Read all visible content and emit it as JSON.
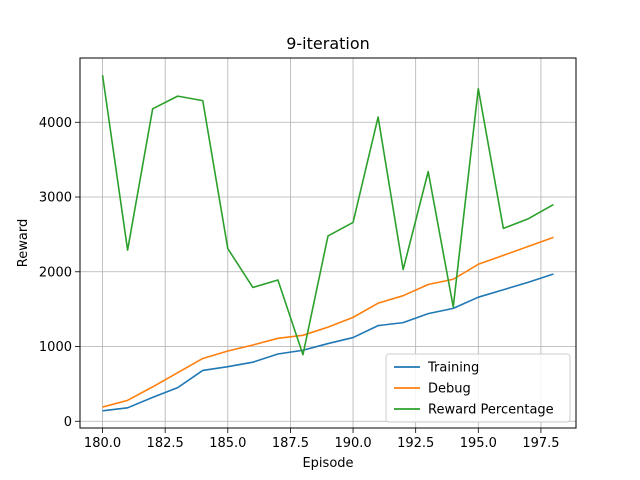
{
  "chart_data": {
    "type": "line",
    "title": "9-iteration",
    "xlabel": "Episode",
    "ylabel": "Reward",
    "xlim": [
      179.1,
      198.9
    ],
    "ylim": [
      -90,
      4860
    ],
    "xticks": [
      180.0,
      182.5,
      185.0,
      187.5,
      190.0,
      192.5,
      195.0,
      197.5
    ],
    "xtick_labels": [
      "180.0",
      "182.5",
      "185.0",
      "187.5",
      "190.0",
      "192.5",
      "195.0",
      "197.5"
    ],
    "yticks": [
      0,
      1000,
      2000,
      3000,
      4000
    ],
    "ytick_labels": [
      "0",
      "1000",
      "2000",
      "3000",
      "4000"
    ],
    "grid": true,
    "legend_position": "lower-right",
    "x": [
      180,
      181,
      182,
      183,
      184,
      185,
      186,
      187,
      188,
      189,
      190,
      191,
      192,
      193,
      194,
      195,
      196,
      197,
      198
    ],
    "series": [
      {
        "name": "Training",
        "color": "#1f77b4",
        "values": [
          140,
          180,
          320,
          450,
          680,
          730,
          790,
          900,
          950,
          1040,
          1120,
          1280,
          1320,
          1440,
          1510,
          1660,
          1760,
          1860,
          1970
        ]
      },
      {
        "name": "Debug",
        "color": "#ff7f0e",
        "values": [
          190,
          280,
          460,
          650,
          840,
          940,
          1020,
          1110,
          1150,
          1260,
          1390,
          1580,
          1680,
          1830,
          1900,
          2100,
          2220,
          2340,
          2460
        ]
      },
      {
        "name": "Reward Percentage",
        "color": "#2ca02c",
        "values": [
          4630,
          2290,
          4180,
          4350,
          4290,
          2310,
          1790,
          1890,
          890,
          2480,
          2660,
          4070,
          2030,
          3340,
          1530,
          4450,
          2580,
          2710,
          2900
        ]
      }
    ]
  }
}
